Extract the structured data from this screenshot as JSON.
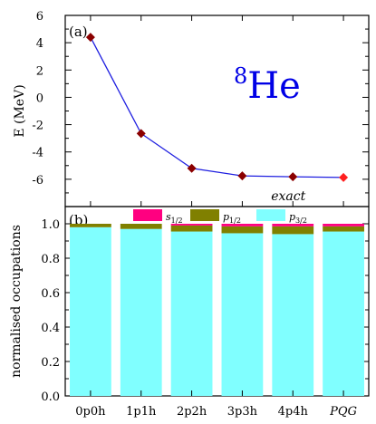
{
  "chart_data": [
    {
      "type": "line",
      "panel_label": "(a)",
      "annotation_prefix": "8",
      "annotation_main": "He",
      "ylabel": "E (MeV)",
      "x": [
        "0p0h",
        "1p1h",
        "2p2h",
        "3p3h",
        "4p4h"
      ],
      "values": [
        4.4,
        -2.65,
        -5.2,
        -5.75,
        -5.82
      ],
      "exact_label": "exact",
      "exact_value": -5.87,
      "ylim": [
        -8,
        6
      ],
      "yticks": [
        "6",
        "4",
        "2",
        "0",
        "-2",
        "-4",
        "-6",
        "-8"
      ],
      "colors": {
        "line": "#1f1fe0",
        "marker": "#8b0000",
        "exact": "#ff1f1f",
        "annotation": "#0000e6"
      }
    },
    {
      "type": "bar",
      "stacked": true,
      "panel_label": "(b)",
      "ylabel": "normalised occupations",
      "categories": [
        "0p0h",
        "1p1h",
        "2p2h",
        "3p3h",
        "4p4h",
        "PQG"
      ],
      "series": [
        {
          "name_main": "p",
          "name_sub": "3/2",
          "values": [
            0.98,
            0.97,
            0.955,
            0.945,
            0.94,
            0.955
          ],
          "color": "#80ffff"
        },
        {
          "name_main": "p",
          "name_sub": "1/2",
          "values": [
            0.02,
            0.03,
            0.035,
            0.04,
            0.045,
            0.03
          ],
          "color": "#808000"
        },
        {
          "name_main": "s",
          "name_sub": "1/2",
          "values": [
            0.0,
            0.0,
            0.01,
            0.015,
            0.015,
            0.015
          ],
          "color": "#ff0080"
        }
      ],
      "ylim": [
        0,
        1.1
      ],
      "yticks": [
        "0.0",
        "0.2",
        "0.4",
        "0.6",
        "0.8",
        "1.0"
      ]
    }
  ]
}
